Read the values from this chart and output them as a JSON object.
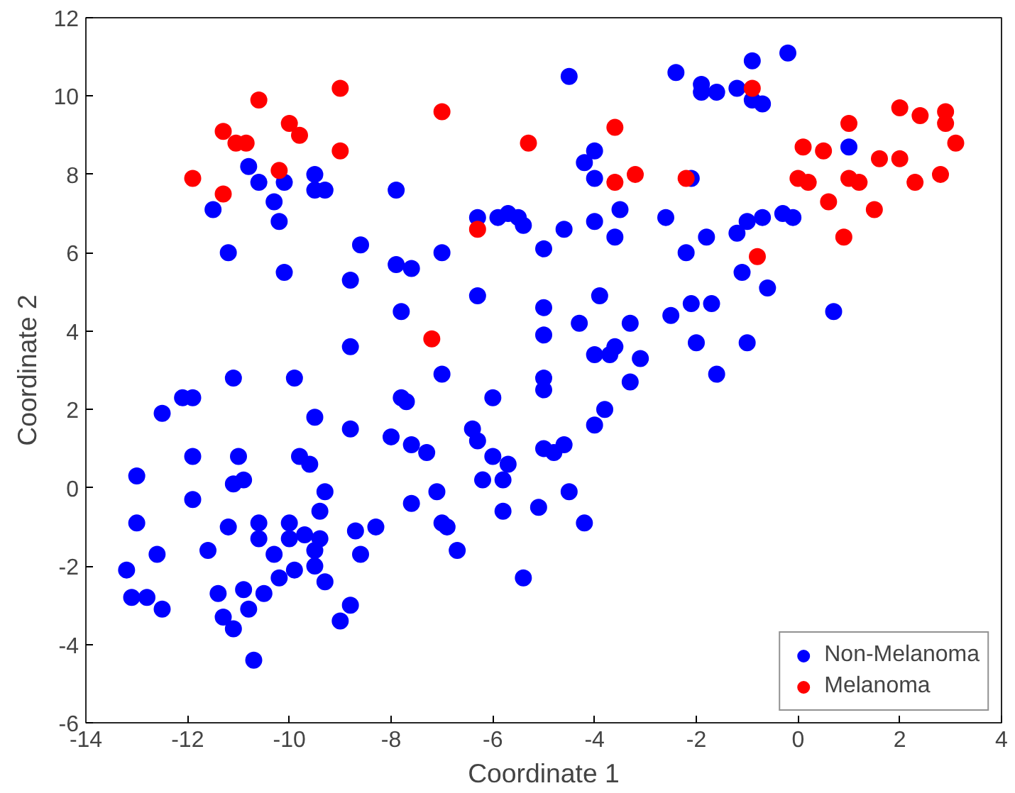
{
  "chart_data": {
    "type": "scatter",
    "xlabel": "Coordinate 1",
    "ylabel": "Coordinate 2",
    "xlim": [
      -14,
      4
    ],
    "ylim": [
      -6,
      12
    ],
    "xticks": [
      -14,
      -12,
      -10,
      -8,
      -6,
      -4,
      -2,
      0,
      2,
      4
    ],
    "yticks": [
      -6,
      -4,
      -2,
      0,
      2,
      4,
      6,
      8,
      10,
      12
    ],
    "grid": false,
    "legend": "bottom right",
    "marker": "circle",
    "series": [
      {
        "name": "Non-Melanoma",
        "color": "#0000ff",
        "x": [
          -11.5,
          -11.2,
          -10.8,
          -10.6,
          -10.3,
          -10.2,
          -10.1,
          -10.1,
          -9.5,
          -9.5,
          -9.3,
          -8.6,
          -8.8,
          -8.8,
          -7.9,
          -7.9,
          -7.6,
          -7.8,
          -7.0,
          -6.3,
          -6.3,
          -6.0,
          -5.9,
          -5.7,
          -5.5,
          -5.4,
          -5.0,
          -5.0,
          -5.0,
          -5.0,
          -5.0,
          -4.6,
          -4.5,
          -4.2,
          -4.0,
          -4.0,
          -4.0,
          -3.9,
          -4.3,
          -4.0,
          -3.6,
          -3.5,
          -3.7,
          -3.6,
          -3.3,
          -3.3,
          -3.1,
          -2.6,
          -2.4,
          -2.2,
          -2.1,
          -2.1,
          -1.8,
          -1.9,
          -1.9,
          -1.6,
          -1.2,
          -1.2,
          -1.1,
          -1.0,
          -0.9,
          -0.9,
          -0.7,
          -0.7,
          -0.6,
          -0.3,
          -0.1,
          -0.2,
          -1.0,
          -1.6,
          -1.7,
          -2.0,
          -2.5,
          0.7,
          1.0,
          -13.2,
          -13.1,
          -13.0,
          -13.0,
          -12.8,
          -12.6,
          -12.5,
          -12.5,
          -12.1,
          -11.9,
          -11.9,
          -11.9,
          -11.6,
          -11.4,
          -11.3,
          -11.2,
          -11.1,
          -11.1,
          -11.1,
          -11.0,
          -10.9,
          -10.9,
          -10.8,
          -10.7,
          -10.6,
          -10.6,
          -10.5,
          -10.3,
          -10.2,
          -10.0,
          -10.0,
          -9.9,
          -9.8,
          -9.7,
          -9.6,
          -9.5,
          -9.5,
          -9.4,
          -9.4,
          -9.3,
          -9.3,
          -9.0,
          -8.8,
          -8.7,
          -8.6,
          -8.3,
          -9.9,
          -9.5,
          -8.8,
          -8.0,
          -7.8,
          -7.7,
          -7.6,
          -7.3,
          -7.6,
          -7.1,
          -7.0,
          -7.0,
          -6.9,
          -6.7,
          -6.4,
          -6.3,
          -6.2,
          -6.0,
          -5.8,
          -5.8,
          -5.7,
          -5.4,
          -5.1,
          -5.0,
          -4.8,
          -4.6,
          -4.5,
          -4.2,
          -4.0,
          -3.8
        ],
        "values": [
          7.1,
          6.0,
          8.2,
          7.8,
          7.3,
          6.8,
          7.8,
          5.5,
          7.6,
          8.0,
          7.6,
          6.2,
          5.3,
          3.6,
          7.6,
          5.7,
          5.6,
          4.5,
          6.0,
          6.9,
          4.9,
          2.3,
          6.9,
          7.0,
          6.9,
          6.7,
          6.1,
          4.6,
          3.9,
          2.8,
          2.5,
          6.6,
          10.5,
          8.3,
          8.6,
          7.9,
          6.8,
          4.9,
          4.2,
          3.4,
          6.4,
          7.1,
          3.4,
          3.6,
          4.2,
          2.7,
          3.3,
          6.9,
          10.6,
          6.0,
          7.9,
          4.7,
          6.4,
          10.1,
          10.3,
          10.1,
          10.2,
          6.5,
          5.5,
          6.8,
          10.9,
          9.9,
          9.8,
          6.9,
          5.1,
          7.0,
          6.9,
          11.1,
          3.7,
          2.9,
          4.7,
          3.7,
          4.4,
          4.5,
          8.7,
          -2.1,
          -2.8,
          -0.9,
          0.3,
          -2.8,
          -1.7,
          -3.1,
          1.9,
          2.3,
          2.3,
          0.8,
          -0.3,
          -1.6,
          -2.7,
          -3.3,
          -1.0,
          -3.6,
          0.1,
          2.8,
          0.8,
          0.2,
          -2.6,
          -3.1,
          -4.4,
          -1.3,
          -0.9,
          -2.7,
          -1.7,
          -2.3,
          -1.3,
          -0.9,
          -2.1,
          0.8,
          -1.2,
          0.6,
          -1.6,
          -2.0,
          -0.6,
          -1.3,
          -2.4,
          -0.1,
          -3.4,
          -3.0,
          -1.1,
          -1.7,
          -1.0,
          2.8,
          1.8,
          1.5,
          1.3,
          2.3,
          2.2,
          1.1,
          0.9,
          -0.4,
          -0.1,
          2.9,
          -0.9,
          -1.0,
          -1.6,
          1.5,
          1.2,
          0.2,
          0.8,
          0.2,
          -0.6,
          0.6,
          -2.3,
          -0.5,
          1.0,
          0.9,
          1.1,
          -0.1,
          -0.9,
          1.6,
          2.0
        ]
      },
      {
        "name": "Melanoma",
        "color": "#ff0000",
        "x": [
          -11.9,
          -11.3,
          -11.3,
          -11.05,
          -10.85,
          -10.6,
          -10.2,
          -10.0,
          -9.8,
          -9.0,
          -9.0,
          -7.0,
          -7.2,
          -6.3,
          -5.3,
          -3.6,
          -3.6,
          -3.2,
          -2.2,
          -0.9,
          -0.8,
          0.0,
          0.2,
          0.1,
          0.5,
          0.6,
          0.9,
          1.0,
          1.0,
          1.2,
          1.5,
          1.6,
          2.0,
          2.0,
          2.3,
          2.4,
          2.8,
          2.9,
          2.9,
          3.1
        ],
        "values": [
          7.9,
          9.1,
          7.5,
          8.8,
          8.8,
          9.9,
          8.1,
          9.3,
          9.0,
          10.2,
          8.6,
          9.6,
          3.8,
          6.6,
          8.8,
          9.2,
          7.8,
          8.0,
          7.9,
          10.2,
          5.9,
          7.9,
          7.8,
          8.7,
          8.6,
          7.3,
          6.4,
          9.3,
          7.9,
          7.8,
          7.1,
          8.4,
          8.4,
          9.7,
          7.8,
          9.5,
          8.0,
          9.6,
          9.3,
          8.8
        ]
      }
    ]
  }
}
